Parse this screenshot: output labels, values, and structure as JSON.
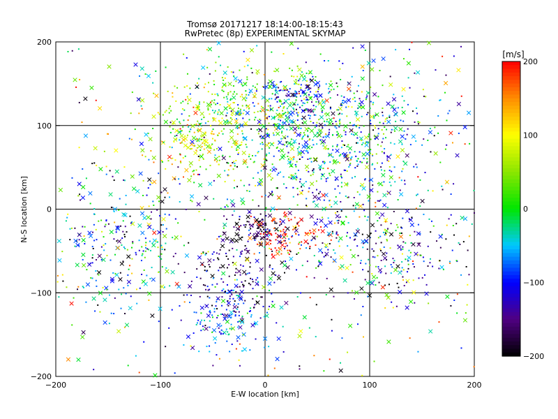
{
  "chart_data": {
    "type": "scatter",
    "title": "Tromsø 20171217 18:14:00-18:15:43",
    "subtitle": "RwPretec (8p) EXPERIMENTAL SKYMAP",
    "xlabel": "E-W location [km]",
    "ylabel": "N-S location [km]",
    "xlim": [
      -200,
      200
    ],
    "ylim": [
      -200,
      200
    ],
    "xticks": [
      -200,
      -100,
      0,
      100,
      200
    ],
    "yticks": [
      -200,
      -100,
      0,
      100,
      200
    ],
    "grid": true,
    "colorbar": {
      "label": "[m/s]",
      "range": [
        -200,
        200
      ],
      "ticks": [
        200,
        100,
        0,
        -100,
        -200
      ],
      "colormap": "black-purple-blue-cyan-green-yellow-red"
    },
    "markers": [
      "small dot",
      "x"
    ],
    "clusters": [
      {
        "x": -25,
        "y": 120,
        "sx": 45,
        "sy": 30,
        "velocity": 30,
        "vspread": 50
      },
      {
        "x": 35,
        "y": 135,
        "sx": 20,
        "sy": 10,
        "velocity": -110,
        "vspread": 40
      },
      {
        "x": -60,
        "y": 80,
        "sx": 30,
        "sy": 25,
        "velocity": 80,
        "vspread": 50
      },
      {
        "x": 30,
        "y": 70,
        "sx": 50,
        "sy": 45,
        "velocity": -30,
        "vspread": 80
      },
      {
        "x": 80,
        "y": 90,
        "sx": 50,
        "sy": 40,
        "velocity": -60,
        "vspread": 70
      },
      {
        "x": 20,
        "y": -30,
        "sx": 20,
        "sy": 12,
        "velocity": 190,
        "vspread": 20
      },
      {
        "x": -5,
        "y": -25,
        "sx": 15,
        "sy": 12,
        "velocity": -170,
        "vspread": 40
      },
      {
        "x": -30,
        "y": -80,
        "sx": 20,
        "sy": 25,
        "velocity": -160,
        "vspread": 50
      },
      {
        "x": -40,
        "y": -130,
        "sx": 22,
        "sy": 25,
        "velocity": -80,
        "vspread": 40
      },
      {
        "x": 110,
        "y": -50,
        "sx": 50,
        "sy": 30,
        "velocity": -80,
        "vspread": 100
      },
      {
        "x": -140,
        "y": -40,
        "sx": 30,
        "sy": 40,
        "velocity": -60,
        "vspread": 80
      }
    ]
  }
}
